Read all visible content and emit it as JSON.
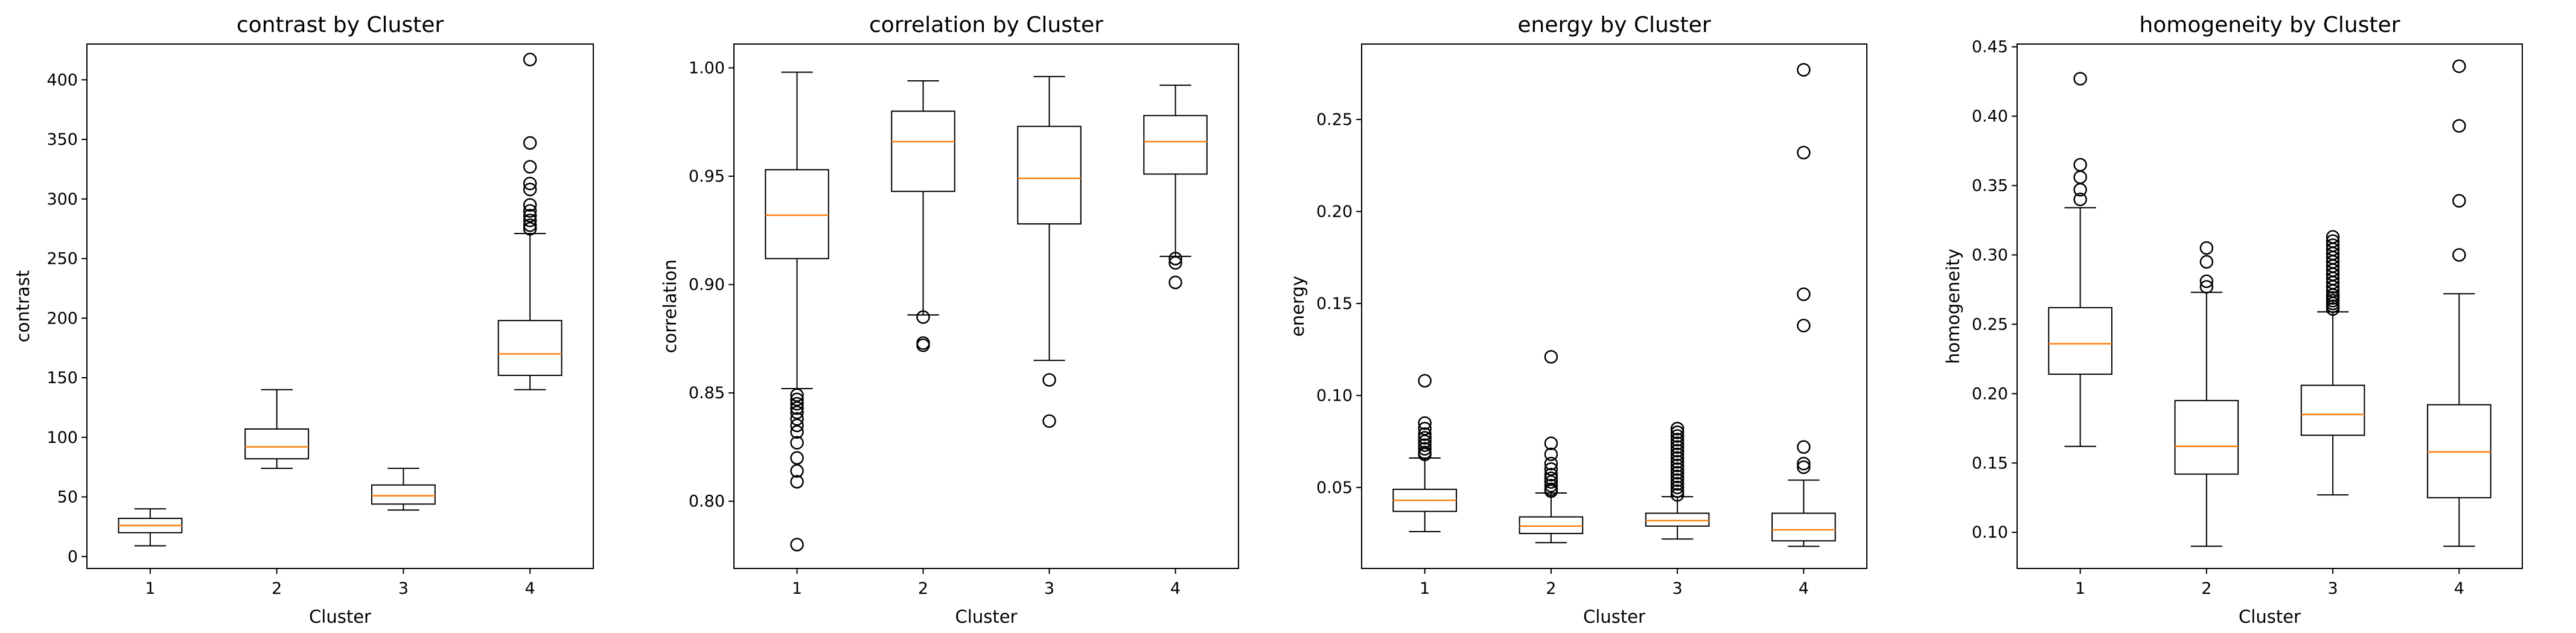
{
  "chart_data": [
    {
      "type": "box",
      "title": "contrast by Cluster",
      "xlabel": "Cluster",
      "ylabel": "contrast",
      "categories": [
        "1",
        "2",
        "3",
        "4"
      ],
      "ylim": [
        -10,
        430
      ],
      "yticks": [
        0,
        50,
        100,
        150,
        200,
        250,
        300,
        350,
        400
      ],
      "boxes": [
        {
          "whislo": 9,
          "q1": 20,
          "med": 26,
          "q3": 32,
          "whishi": 40,
          "fliers": []
        },
        {
          "whislo": 74,
          "q1": 82,
          "med": 92,
          "q3": 107,
          "whishi": 140,
          "fliers": []
        },
        {
          "whislo": 39,
          "q1": 44,
          "med": 51,
          "q3": 60,
          "whishi": 74,
          "fliers": []
        },
        {
          "whislo": 140,
          "q1": 152,
          "med": 170,
          "q3": 198,
          "whishi": 271,
          "fliers": [
            275,
            278,
            282,
            286,
            290,
            295,
            308,
            313,
            327,
            347,
            417
          ]
        }
      ]
    },
    {
      "type": "box",
      "title": "correlation by Cluster",
      "xlabel": "Cluster",
      "ylabel": "correlation",
      "categories": [
        "1",
        "2",
        "3",
        "4"
      ],
      "ylim": [
        0.769,
        1.011
      ],
      "yticks": [
        0.8,
        0.85,
        0.9,
        0.95,
        1.0
      ],
      "tick_labels": [
        "0.80",
        "0.85",
        "0.90",
        "0.95",
        "1.00"
      ],
      "boxes": [
        {
          "whislo": 0.852,
          "q1": 0.912,
          "med": 0.932,
          "q3": 0.953,
          "whishi": 0.998,
          "fliers": [
            0.849,
            0.847,
            0.845,
            0.843,
            0.841,
            0.838,
            0.835,
            0.832,
            0.827,
            0.82,
            0.814,
            0.809,
            0.78
          ]
        },
        {
          "whislo": 0.886,
          "q1": 0.943,
          "med": 0.966,
          "q3": 0.98,
          "whishi": 0.994,
          "fliers": [
            0.885,
            0.873,
            0.872
          ]
        },
        {
          "whislo": 0.865,
          "q1": 0.928,
          "med": 0.949,
          "q3": 0.973,
          "whishi": 0.996,
          "fliers": [
            0.856,
            0.837
          ]
        },
        {
          "whislo": 0.913,
          "q1": 0.951,
          "med": 0.966,
          "q3": 0.978,
          "whishi": 0.992,
          "fliers": [
            0.912,
            0.91,
            0.901
          ]
        }
      ]
    },
    {
      "type": "box",
      "title": "energy by Cluster",
      "xlabel": "Cluster",
      "ylabel": "energy",
      "categories": [
        "1",
        "2",
        "3",
        "4"
      ],
      "ylim": [
        0.006,
        0.291
      ],
      "yticks": [
        0.05,
        0.1,
        0.15,
        0.2,
        0.25
      ],
      "tick_labels": [
        "0.05",
        "0.10",
        "0.15",
        "0.20",
        "0.25"
      ],
      "boxes": [
        {
          "whislo": 0.026,
          "q1": 0.037,
          "med": 0.043,
          "q3": 0.049,
          "whishi": 0.066,
          "fliers": [
            0.068,
            0.069,
            0.071,
            0.073,
            0.075,
            0.077,
            0.079,
            0.082,
            0.085,
            0.108
          ]
        },
        {
          "whislo": 0.02,
          "q1": 0.025,
          "med": 0.029,
          "q3": 0.034,
          "whishi": 0.047,
          "fliers": [
            0.048,
            0.049,
            0.051,
            0.053,
            0.055,
            0.057,
            0.06,
            0.063,
            0.068,
            0.074,
            0.121
          ]
        },
        {
          "whislo": 0.022,
          "q1": 0.029,
          "med": 0.032,
          "q3": 0.036,
          "whishi": 0.045,
          "fliers": [
            0.046,
            0.048,
            0.05,
            0.052,
            0.054,
            0.056,
            0.058,
            0.06,
            0.062,
            0.064,
            0.066,
            0.068,
            0.07,
            0.072,
            0.074,
            0.076,
            0.078,
            0.08,
            0.082
          ]
        },
        {
          "whislo": 0.018,
          "q1": 0.021,
          "med": 0.027,
          "q3": 0.036,
          "whishi": 0.054,
          "fliers": [
            0.061,
            0.063,
            0.072,
            0.138,
            0.155,
            0.232,
            0.277
          ]
        }
      ]
    },
    {
      "type": "box",
      "title": "homogeneity by Cluster",
      "xlabel": "Cluster",
      "ylabel": "homogeneity",
      "categories": [
        "1",
        "2",
        "3",
        "4"
      ],
      "ylim": [
        0.074,
        0.452
      ],
      "yticks": [
        0.1,
        0.15,
        0.2,
        0.25,
        0.3,
        0.35,
        0.4,
        0.45
      ],
      "tick_labels": [
        "0.10",
        "0.15",
        "0.20",
        "0.25",
        "0.30",
        "0.35",
        "0.40",
        "0.45"
      ],
      "boxes": [
        {
          "whislo": 0.162,
          "q1": 0.214,
          "med": 0.236,
          "q3": 0.262,
          "whishi": 0.334,
          "fliers": [
            0.34,
            0.347,
            0.356,
            0.365,
            0.427
          ]
        },
        {
          "whislo": 0.09,
          "q1": 0.142,
          "med": 0.162,
          "q3": 0.195,
          "whishi": 0.273,
          "fliers": [
            0.277,
            0.281,
            0.295,
            0.305
          ]
        },
        {
          "whislo": 0.127,
          "q1": 0.17,
          "med": 0.185,
          "q3": 0.206,
          "whishi": 0.259,
          "fliers": [
            0.261,
            0.263,
            0.265,
            0.267,
            0.269,
            0.271,
            0.274,
            0.277,
            0.28,
            0.283,
            0.286,
            0.289,
            0.292,
            0.295,
            0.298,
            0.301,
            0.304,
            0.307,
            0.31,
            0.313
          ]
        },
        {
          "whislo": 0.09,
          "q1": 0.125,
          "med": 0.158,
          "q3": 0.192,
          "whishi": 0.272,
          "fliers": [
            0.3,
            0.339,
            0.393,
            0.436
          ]
        }
      ]
    }
  ],
  "colors": {
    "median": "#ff7f0e",
    "line": "#000000",
    "background": "#ffffff"
  }
}
